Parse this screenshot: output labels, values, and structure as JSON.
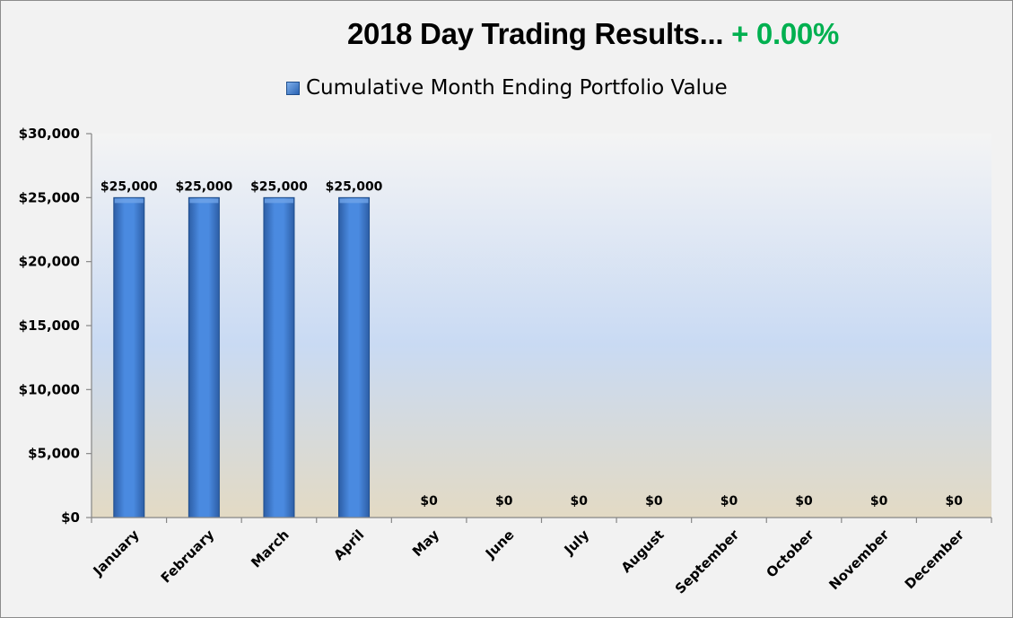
{
  "chart_data": {
    "type": "bar",
    "title_main": "2018 Day Trading Results...",
    "title_highlight": "+ 0.00%",
    "title_highlight_color": "#00b050",
    "legend_position": "top",
    "series": [
      {
        "name": "Cumulative Month Ending Portfolio Value",
        "color": "#3d7cd0",
        "values": [
          25000,
          25000,
          25000,
          25000,
          0,
          0,
          0,
          0,
          0,
          0,
          0,
          0
        ]
      }
    ],
    "categories": [
      "January",
      "February",
      "March",
      "April",
      "May",
      "June",
      "July",
      "August",
      "September",
      "October",
      "November",
      "December"
    ],
    "data_labels": [
      "$25,000",
      "$25,000",
      "$25,000",
      "$25,000",
      "$0",
      "$0",
      "$0",
      "$0",
      "$0",
      "$0",
      "$0",
      "$0"
    ],
    "y_ticks": [
      0,
      5000,
      10000,
      15000,
      20000,
      25000,
      30000
    ],
    "y_tick_labels": [
      "$0",
      "$5,000",
      "$10,000",
      "$15,000",
      "$20,000",
      "$25,000",
      "$30,000"
    ],
    "ylim": [
      0,
      30000
    ],
    "grid": false
  }
}
